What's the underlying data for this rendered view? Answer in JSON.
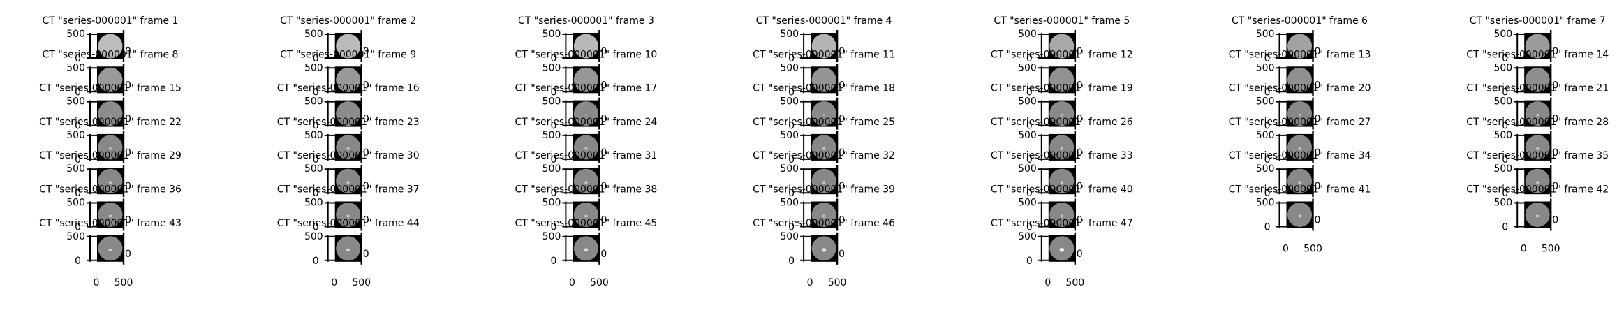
{
  "figure": {
    "background": "#ffffff",
    "text_color": "#000000",
    "columns": 7
  },
  "chart_data": {
    "type": "image-grid",
    "title_prefix": "CT \"series-000001\" frame",
    "frame_count": 47,
    "tick_labels": [
      "0",
      "500"
    ],
    "xlim": [
      0,
      500
    ],
    "ylim": [
      0,
      500
    ],
    "axis_color": "#000000",
    "panels": [
      {
        "frame": 1,
        "title": "CT \"series-000001\" frame 1",
        "mean_intensity": "#bcbcbc",
        "bright_spot": 0.0
      },
      {
        "frame": 2,
        "title": "CT \"series-000001\" frame 2",
        "mean_intensity": "#bababa",
        "bright_spot": 0.0
      },
      {
        "frame": 3,
        "title": "CT \"series-000001\" frame 3",
        "mean_intensity": "#b8b8b8",
        "bright_spot": 0.0
      },
      {
        "frame": 4,
        "title": "CT \"series-000001\" frame 4",
        "mean_intensity": "#b4b4b4",
        "bright_spot": 0.0
      },
      {
        "frame": 5,
        "title": "CT \"series-000001\" frame 5",
        "mean_intensity": "#a8a8a8",
        "bright_spot": 0.0
      },
      {
        "frame": 6,
        "title": "CT \"series-000001\" frame 6",
        "mean_intensity": "#a2a2a2",
        "bright_spot": 0.0
      },
      {
        "frame": 7,
        "title": "CT \"series-000001\" frame 7",
        "mean_intensity": "#9c9c9c",
        "bright_spot": 0.0
      },
      {
        "frame": 8,
        "title": "CT \"series-000001\" frame 8",
        "mean_intensity": "#9a9a9a",
        "bright_spot": 0.0
      },
      {
        "frame": 9,
        "title": "CT \"series-000001\" frame 9",
        "mean_intensity": "#989898",
        "bright_spot": 0.0
      },
      {
        "frame": 10,
        "title": "CT \"series-000001\" frame 10",
        "mean_intensity": "#969696",
        "bright_spot": 0.0
      },
      {
        "frame": 11,
        "title": "CT \"series-000001\" frame 11",
        "mean_intensity": "#949494",
        "bright_spot": 0.0
      },
      {
        "frame": 12,
        "title": "CT \"series-000001\" frame 12",
        "mean_intensity": "#929292",
        "bright_spot": 0.0
      },
      {
        "frame": 13,
        "title": "CT \"series-000001\" frame 13",
        "mean_intensity": "#909090",
        "bright_spot": 0.0
      },
      {
        "frame": 14,
        "title": "CT \"series-000001\" frame 14",
        "mean_intensity": "#8e8e8e",
        "bright_spot": 0.0
      },
      {
        "frame": 15,
        "title": "CT \"series-000001\" frame 15",
        "mean_intensity": "#8c8c8c",
        "bright_spot": 0.1
      },
      {
        "frame": 16,
        "title": "CT \"series-000001\" frame 16",
        "mean_intensity": "#8c8c8c",
        "bright_spot": 0.1
      },
      {
        "frame": 17,
        "title": "CT \"series-000001\" frame 17",
        "mean_intensity": "#8a8a8a",
        "bright_spot": 0.2
      },
      {
        "frame": 18,
        "title": "CT \"series-000001\" frame 18",
        "mean_intensity": "#8a8a8a",
        "bright_spot": 0.2
      },
      {
        "frame": 19,
        "title": "CT \"series-000001\" frame 19",
        "mean_intensity": "#8a8a8a",
        "bright_spot": 0.3
      },
      {
        "frame": 20,
        "title": "CT \"series-000001\" frame 20",
        "mean_intensity": "#888888",
        "bright_spot": 0.3
      },
      {
        "frame": 21,
        "title": "CT \"series-000001\" frame 21",
        "mean_intensity": "#888888",
        "bright_spot": 0.4
      },
      {
        "frame": 22,
        "title": "CT \"series-000001\" frame 22",
        "mean_intensity": "#888888",
        "bright_spot": 0.4
      },
      {
        "frame": 23,
        "title": "CT \"series-000001\" frame 23",
        "mean_intensity": "#888888",
        "bright_spot": 0.5
      },
      {
        "frame": 24,
        "title": "CT \"series-000001\" frame 24",
        "mean_intensity": "#888888",
        "bright_spot": 0.5
      },
      {
        "frame": 25,
        "title": "CT \"series-000001\" frame 25",
        "mean_intensity": "#888888",
        "bright_spot": 0.5
      },
      {
        "frame": 26,
        "title": "CT \"series-000001\" frame 26",
        "mean_intensity": "#888888",
        "bright_spot": 0.5
      },
      {
        "frame": 27,
        "title": "CT \"series-000001\" frame 27",
        "mean_intensity": "#888888",
        "bright_spot": 0.5
      },
      {
        "frame": 28,
        "title": "CT \"series-000001\" frame 28",
        "mean_intensity": "#888888",
        "bright_spot": 0.5
      },
      {
        "frame": 29,
        "title": "CT \"series-000001\" frame 29",
        "mean_intensity": "#888888",
        "bright_spot": 0.5
      },
      {
        "frame": 30,
        "title": "CT \"series-000001\" frame 30",
        "mean_intensity": "#888888",
        "bright_spot": 0.5
      },
      {
        "frame": 31,
        "title": "CT \"series-000001\" frame 31",
        "mean_intensity": "#888888",
        "bright_spot": 0.5
      },
      {
        "frame": 32,
        "title": "CT \"series-000001\" frame 32",
        "mean_intensity": "#888888",
        "bright_spot": 0.5
      },
      {
        "frame": 33,
        "title": "CT \"series-000001\" frame 33",
        "mean_intensity": "#888888",
        "bright_spot": 0.5
      },
      {
        "frame": 34,
        "title": "CT \"series-000001\" frame 34",
        "mean_intensity": "#888888",
        "bright_spot": 0.5
      },
      {
        "frame": 35,
        "title": "CT \"series-000001\" frame 35",
        "mean_intensity": "#888888",
        "bright_spot": 0.5
      },
      {
        "frame": 36,
        "title": "CT \"series-000001\" frame 36",
        "mean_intensity": "#888888",
        "bright_spot": 0.5
      },
      {
        "frame": 37,
        "title": "CT \"series-000001\" frame 37",
        "mean_intensity": "#888888",
        "bright_spot": 0.5
      },
      {
        "frame": 38,
        "title": "CT \"series-000001\" frame 38",
        "mean_intensity": "#888888",
        "bright_spot": 0.5
      },
      {
        "frame": 39,
        "title": "CT \"series-000001\" frame 39",
        "mean_intensity": "#888888",
        "bright_spot": 0.5
      },
      {
        "frame": 40,
        "title": "CT \"series-000001\" frame 40",
        "mean_intensity": "#888888",
        "bright_spot": 0.5
      },
      {
        "frame": 41,
        "title": "CT \"series-000001\" frame 41",
        "mean_intensity": "#888888",
        "bright_spot": 0.5
      },
      {
        "frame": 42,
        "title": "CT \"series-000001\" frame 42",
        "mean_intensity": "#888888",
        "bright_spot": 0.5
      },
      {
        "frame": 43,
        "title": "CT \"series-000001\" frame 43",
        "mean_intensity": "#888888",
        "bright_spot": 0.6
      },
      {
        "frame": 44,
        "title": "CT \"series-000001\" frame 44",
        "mean_intensity": "#888888",
        "bright_spot": 0.7
      },
      {
        "frame": 45,
        "title": "CT \"series-000001\" frame 45",
        "mean_intensity": "#888888",
        "bright_spot": 0.8
      },
      {
        "frame": 46,
        "title": "CT \"series-000001\" frame 46",
        "mean_intensity": "#888888",
        "bright_spot": 0.9
      },
      {
        "frame": 47,
        "title": "CT \"series-000001\" frame 47",
        "mean_intensity": "#888888",
        "bright_spot": 1.0
      }
    ]
  }
}
